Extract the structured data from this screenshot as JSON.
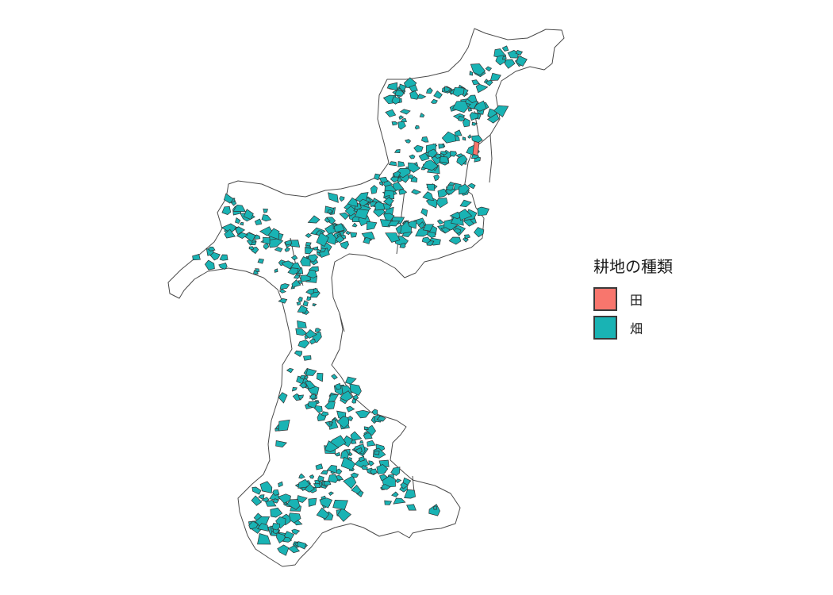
{
  "legend": {
    "title": "耕地の種類",
    "items": [
      {
        "label": "田",
        "color": "#F8766D"
      },
      {
        "label": "畑",
        "color": "#19B3B4"
      }
    ]
  },
  "map": {
    "type": "choropleth-parcels",
    "land_fill": "#FFFFFF",
    "border_color": "#4A4A4A",
    "parcel_outline_color": "#333333"
  }
}
